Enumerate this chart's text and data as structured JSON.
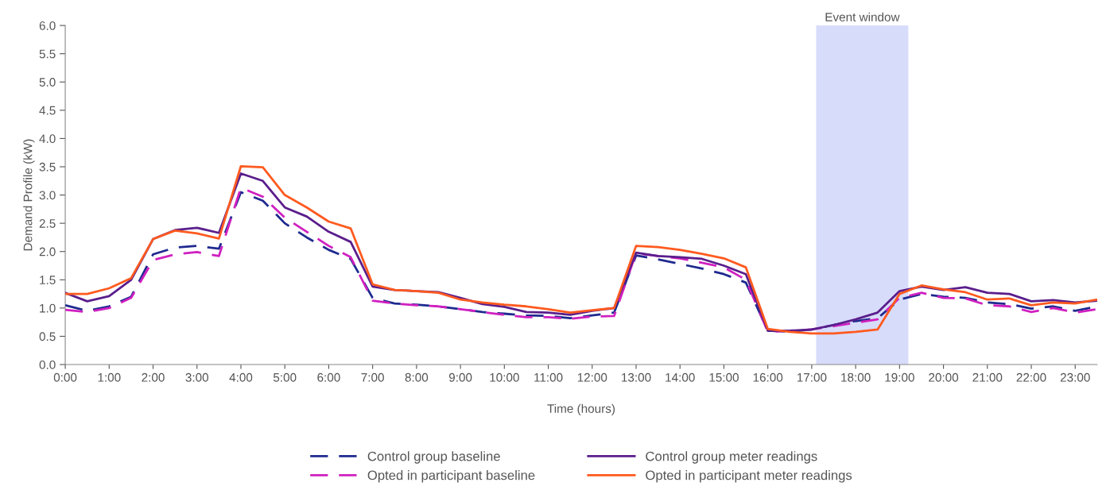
{
  "chart_data": {
    "type": "line",
    "xlabel": "Time (hours)",
    "ylabel": "Demand Profile (kW)",
    "x": [
      0,
      0.5,
      1,
      1.5,
      2,
      2.5,
      3,
      3.5,
      4,
      4.5,
      5,
      5.5,
      6,
      6.5,
      7,
      7.5,
      8,
      8.5,
      9,
      9.5,
      10,
      10.5,
      11,
      11.5,
      12,
      12.5,
      13,
      13.5,
      14,
      14.5,
      15,
      15.5,
      16,
      16.5,
      17,
      17.5,
      18,
      18.5,
      19,
      19.5,
      20,
      20.5,
      21,
      21.5,
      22,
      22.5,
      23,
      23.5
    ],
    "series": [
      {
        "name": "Control group baseline",
        "color": "#1f2a8f",
        "line_style": "dashed",
        "values": [
          1.05,
          0.95,
          1.03,
          1.2,
          1.95,
          2.07,
          2.1,
          2.05,
          3.05,
          2.9,
          2.5,
          2.25,
          2.03,
          1.87,
          1.18,
          1.08,
          1.06,
          1.03,
          0.98,
          0.93,
          0.9,
          0.87,
          0.86,
          0.82,
          0.87,
          0.92,
          1.93,
          1.86,
          1.78,
          1.7,
          1.6,
          1.45,
          0.6,
          0.58,
          0.62,
          0.7,
          0.77,
          0.82,
          1.15,
          1.25,
          1.2,
          1.18,
          1.1,
          1.07,
          0.99,
          1.03,
          0.95,
          1.03
        ]
      },
      {
        "name": "Opted in participant baseline",
        "color": "#d020c0",
        "line_style": "dashed",
        "values": [
          0.97,
          0.93,
          1.0,
          1.18,
          1.85,
          1.95,
          1.99,
          1.92,
          3.13,
          2.97,
          2.6,
          2.35,
          2.1,
          1.9,
          1.13,
          1.08,
          1.05,
          1.03,
          0.98,
          0.93,
          0.88,
          0.84,
          0.84,
          0.81,
          0.85,
          0.86,
          1.97,
          1.92,
          1.88,
          1.8,
          1.72,
          1.5,
          0.58,
          0.6,
          0.62,
          0.68,
          0.74,
          0.8,
          1.18,
          1.27,
          1.18,
          1.17,
          1.05,
          1.03,
          0.93,
          1.0,
          0.92,
          0.98
        ]
      },
      {
        "name": "Control group meter readings",
        "color": "#5a1e8c",
        "line_style": "solid",
        "values": [
          1.27,
          1.12,
          1.21,
          1.5,
          2.22,
          2.38,
          2.42,
          2.33,
          3.38,
          3.25,
          2.78,
          2.62,
          2.35,
          2.17,
          1.38,
          1.32,
          1.3,
          1.28,
          1.18,
          1.07,
          1.02,
          0.93,
          0.92,
          0.88,
          0.95,
          1.0,
          1.98,
          1.92,
          1.9,
          1.87,
          1.75,
          1.6,
          0.6,
          0.6,
          0.62,
          0.7,
          0.8,
          0.92,
          1.3,
          1.38,
          1.32,
          1.37,
          1.27,
          1.25,
          1.12,
          1.14,
          1.1,
          1.13
        ]
      },
      {
        "name": "Opted in participant meter readings",
        "color": "#ff5a1f",
        "line_style": "solid",
        "values": [
          1.25,
          1.25,
          1.35,
          1.53,
          2.22,
          2.37,
          2.32,
          2.23,
          3.51,
          3.49,
          3.0,
          2.78,
          2.53,
          2.41,
          1.42,
          1.32,
          1.3,
          1.27,
          1.15,
          1.1,
          1.06,
          1.03,
          0.98,
          0.92,
          0.96,
          1.0,
          2.1,
          2.08,
          2.03,
          1.96,
          1.88,
          1.72,
          0.63,
          0.58,
          0.55,
          0.55,
          0.58,
          0.62,
          1.25,
          1.4,
          1.33,
          1.28,
          1.15,
          1.17,
          1.05,
          1.1,
          1.08,
          1.15
        ]
      }
    ],
    "bands": [
      {
        "axis": "x",
        "from": 17.1,
        "to": 19.2,
        "label": "Event window",
        "color": "#d8dcfb"
      }
    ],
    "xlim": [
      0,
      23.5
    ],
    "xticks": [
      {
        "value": 0,
        "label": "0:00"
      },
      {
        "value": 1,
        "label": "1:00"
      },
      {
        "value": 2,
        "label": "2:00"
      },
      {
        "value": 3,
        "label": "3:00"
      },
      {
        "value": 4,
        "label": "4:00"
      },
      {
        "value": 5,
        "label": "5:00"
      },
      {
        "value": 6,
        "label": "6:00"
      },
      {
        "value": 7,
        "label": "7:00"
      },
      {
        "value": 8,
        "label": "8:00"
      },
      {
        "value": 9,
        "label": "9:00"
      },
      {
        "value": 10,
        "label": "10:00"
      },
      {
        "value": 11,
        "label": "11:00"
      },
      {
        "value": 12,
        "label": "12:00"
      },
      {
        "value": 13,
        "label": "13:00"
      },
      {
        "value": 14,
        "label": "14:00"
      },
      {
        "value": 15,
        "label": "15:00"
      },
      {
        "value": 16,
        "label": "16:00"
      },
      {
        "value": 17,
        "label": "17:00"
      },
      {
        "value": 18,
        "label": "18:00"
      },
      {
        "value": 19,
        "label": "19:00"
      },
      {
        "value": 20,
        "label": "20:00"
      },
      {
        "value": 21,
        "label": "21:00"
      },
      {
        "value": 22,
        "label": "22:00"
      },
      {
        "value": 23,
        "label": "23:00"
      }
    ],
    "ylim": [
      0,
      6
    ],
    "yticks": [
      {
        "value": 0,
        "label": "0.0"
      },
      {
        "value": 0.5,
        "label": "0.5"
      },
      {
        "value": 1,
        "label": "1.0"
      },
      {
        "value": 1.5,
        "label": "1.5"
      },
      {
        "value": 2,
        "label": "2.0"
      },
      {
        "value": 2.5,
        "label": "2.5"
      },
      {
        "value": 3,
        "label": "3.0"
      },
      {
        "value": 3.5,
        "label": "3.5"
      },
      {
        "value": 4,
        "label": "4.0"
      },
      {
        "value": 4.5,
        "label": "4.5"
      },
      {
        "value": 5,
        "label": "5.0"
      },
      {
        "value": 5.5,
        "label": "5.5"
      },
      {
        "value": 6,
        "label": "6.0"
      }
    ],
    "grid": false,
    "legend": "bottom",
    "marker": "none"
  }
}
